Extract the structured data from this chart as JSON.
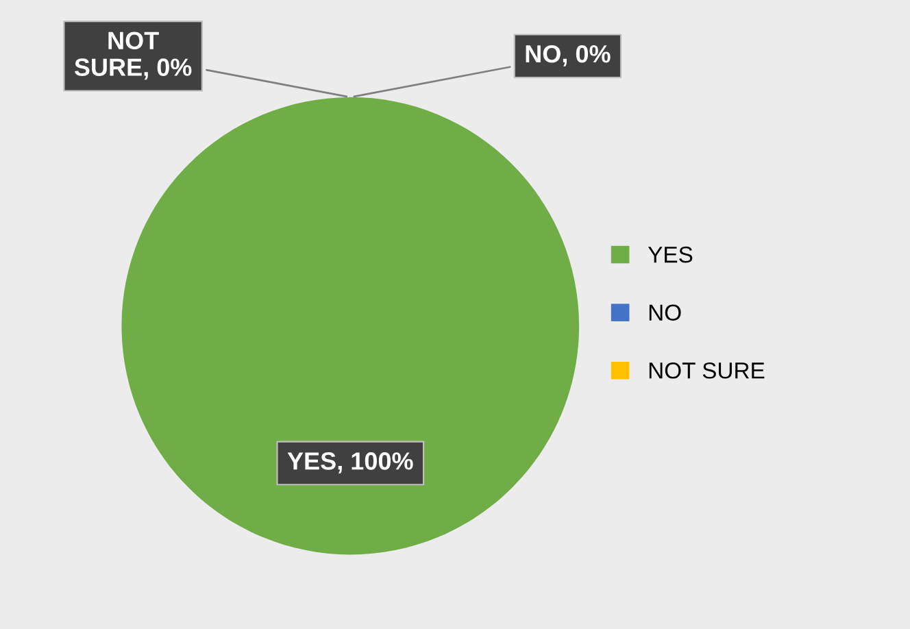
{
  "chart_data": {
    "type": "pie",
    "categories": [
      "YES",
      "NO",
      "NOT SURE"
    ],
    "values": [
      100,
      0,
      0
    ],
    "colors": [
      "#70ad47",
      "#4472c4",
      "#ffc000"
    ],
    "value_labels": [
      "YES, 100%",
      "NO, 0%",
      "NOT SURE, 0%"
    ],
    "legend": "right"
  }
}
